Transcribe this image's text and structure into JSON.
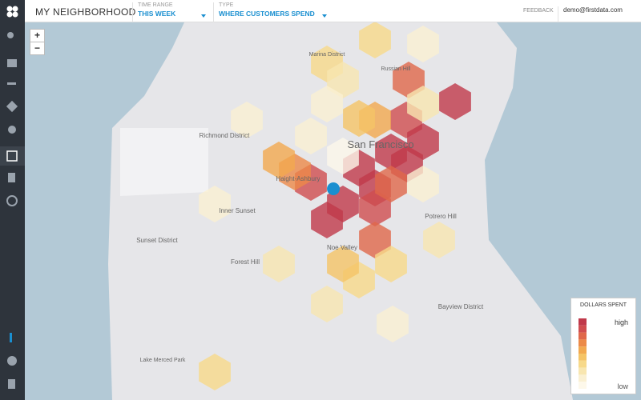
{
  "header": {
    "title": "MY NEIGHBORHOOD",
    "filters": [
      {
        "label": "TIME RANGE",
        "value": "THIS WEEK"
      },
      {
        "label": "TYPE",
        "value": "WHERE CUSTOMERS SPEND"
      }
    ],
    "feedback": "FEEDBACK",
    "user": "demo@firstdata.com"
  },
  "map": {
    "zoom_in": "+",
    "zoom_out": "−",
    "labels": [
      "San Francisco",
      "Richmond District",
      "Sunset District",
      "Haight-Ashbury",
      "Inner Sunset",
      "Noe Valley",
      "Potrero Hill",
      "Bayview District",
      "Forest Hill",
      "Lake Merced Park",
      "Marina District",
      "Russian Hill"
    ]
  },
  "legend": {
    "title": "DOLLARS SPENT",
    "high": "high",
    "low": "low"
  }
}
